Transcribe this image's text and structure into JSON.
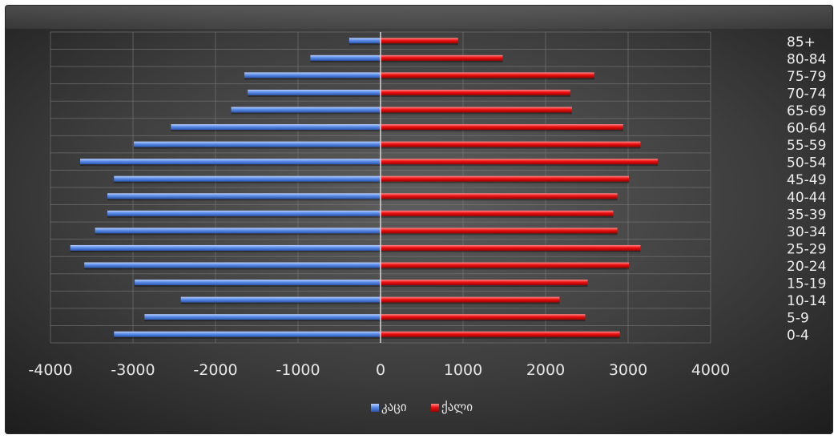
{
  "chart_data": {
    "type": "bar",
    "orientation": "horizontal",
    "categories": [
      "0-4",
      "5-9",
      "10-14",
      "15-19",
      "20-24",
      "25-29",
      "30-34",
      "35-39",
      "40-44",
      "45-49",
      "50-54",
      "55-59",
      "60-64",
      "65-69",
      "70-74",
      "75-79",
      "80-84",
      "85+"
    ],
    "series": [
      {
        "name": "კაცი",
        "color": "#5b8de8",
        "values": [
          -3230,
          -2860,
          -2420,
          -2980,
          -3590,
          -3760,
          -3460,
          -3310,
          -3310,
          -3230,
          -3640,
          -2990,
          -2540,
          -1810,
          -1610,
          -1650,
          -850,
          -380
        ]
      },
      {
        "name": "ქალი",
        "color": "#ee1111",
        "values": [
          2900,
          2480,
          2170,
          2510,
          3010,
          3150,
          2870,
          2820,
          2870,
          3010,
          3360,
          3150,
          2940,
          2320,
          2300,
          2590,
          1480,
          940
        ]
      }
    ],
    "xticks": [
      "-4000",
      "-3000",
      "-2000",
      "-1000",
      "0",
      "1000",
      "2000",
      "3000",
      "4000"
    ],
    "xlim": [
      -4000,
      4000
    ],
    "grid": true,
    "legend_position": "bottom",
    "category_axis_position": "right"
  }
}
